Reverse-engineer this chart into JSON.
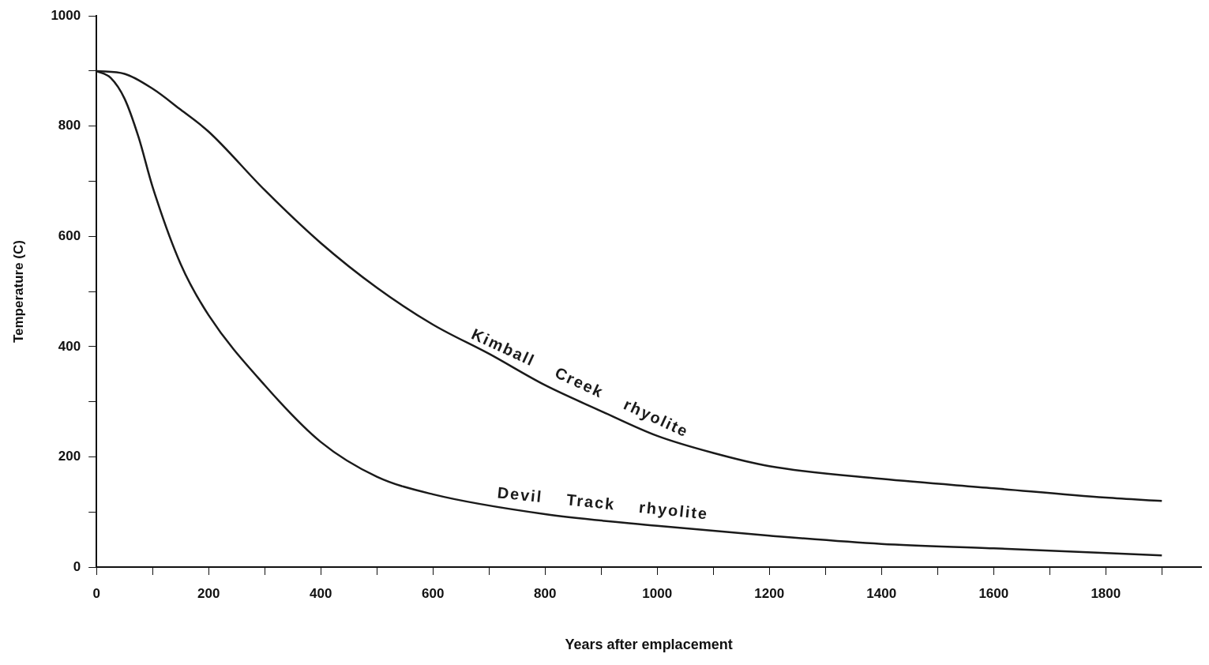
{
  "chart_data": {
    "type": "line",
    "xlabel": "Years after emplacement",
    "ylabel": "Temperature (C)",
    "xlim": [
      0,
      1970
    ],
    "ylim": [
      0,
      1000
    ],
    "xticks": [
      0,
      {
        "value": 100,
        "label": null
      },
      200,
      {
        "value": 300,
        "label": null
      },
      400,
      {
        "value": 500,
        "label": null
      },
      600,
      {
        "value": 700,
        "label": null
      },
      800,
      {
        "value": 900,
        "label": null
      },
      1000,
      {
        "value": 1100,
        "label": null
      },
      1200,
      {
        "value": 1300,
        "label": null
      },
      1400,
      {
        "value": 1500,
        "label": null
      },
      1600,
      {
        "value": 1700,
        "label": null
      },
      1800,
      {
        "value": 1900,
        "label": null
      }
    ],
    "yticks": [
      0,
      {
        "value": 100,
        "label": null
      },
      200,
      {
        "value": 300,
        "label": null
      },
      400,
      {
        "value": 500,
        "label": null
      },
      600,
      {
        "value": 700,
        "label": null
      },
      800,
      {
        "value": 900,
        "label": null
      },
      1000
    ],
    "grid": false,
    "legend": false,
    "marker": "none",
    "line_style": "solid",
    "series": [
      {
        "name": "Kimball Creek rhyolite",
        "color": "#1a1a1a",
        "x": [
          0,
          50,
          100,
          150,
          200,
          300,
          400,
          500,
          600,
          700,
          800,
          900,
          1000,
          1100,
          1200,
          1400,
          1600,
          1800,
          1900
        ],
        "values": [
          900,
          895,
          868,
          830,
          790,
          684,
          588,
          507,
          440,
          387,
          330,
          283,
          238,
          207,
          183,
          160,
          143,
          126,
          120
        ]
      },
      {
        "name": "Devil Track rhyolite",
        "color": "#1a1a1a",
        "x": [
          0,
          25,
          50,
          75,
          100,
          150,
          200,
          300,
          400,
          500,
          600,
          800,
          1000,
          1200,
          1400,
          1600,
          1900
        ],
        "values": [
          900,
          888,
          850,
          780,
          690,
          550,
          457,
          330,
          227,
          164,
          132,
          96,
          75,
          57,
          42,
          34,
          21
        ]
      }
    ]
  }
}
